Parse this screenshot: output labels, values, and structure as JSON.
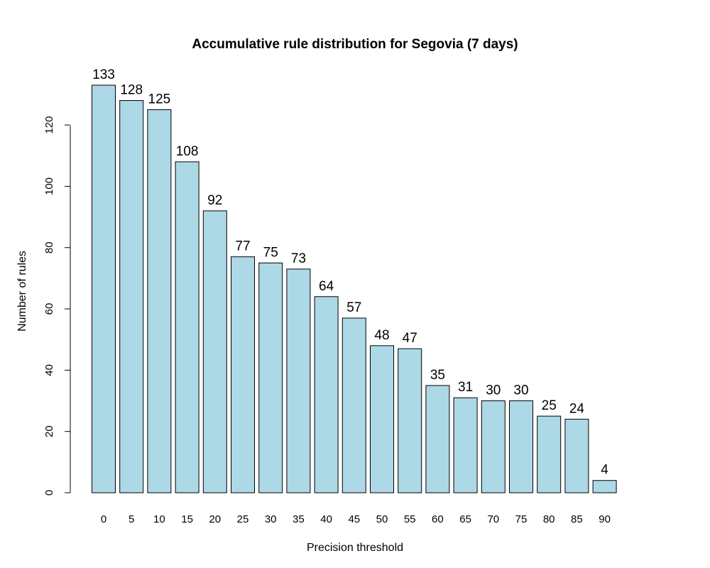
{
  "chart_data": {
    "type": "bar",
    "title": "Accumulative rule distribution for Segovia (7 days)",
    "xlabel": "Precision threshold",
    "ylabel": "Number of rules",
    "categories": [
      "0",
      "5",
      "10",
      "15",
      "20",
      "25",
      "30",
      "35",
      "40",
      "45",
      "50",
      "55",
      "60",
      "65",
      "70",
      "75",
      "80",
      "85",
      "90"
    ],
    "values": [
      133,
      128,
      125,
      108,
      92,
      77,
      75,
      73,
      64,
      57,
      48,
      47,
      35,
      31,
      30,
      30,
      25,
      24,
      4
    ],
    "data_labels": [
      "133",
      "128",
      "125",
      "108",
      "92",
      "77",
      "75",
      "73",
      "64",
      "57",
      "48",
      "47",
      "35",
      "31",
      "30",
      "30",
      "25",
      "24",
      "4"
    ],
    "yticks": [
      "0",
      "20",
      "40",
      "60",
      "80",
      "100",
      "120"
    ],
    "ylim": [
      0,
      133
    ],
    "grid": false,
    "bar_color": "#add8e6",
    "edge_color": "#000000"
  }
}
